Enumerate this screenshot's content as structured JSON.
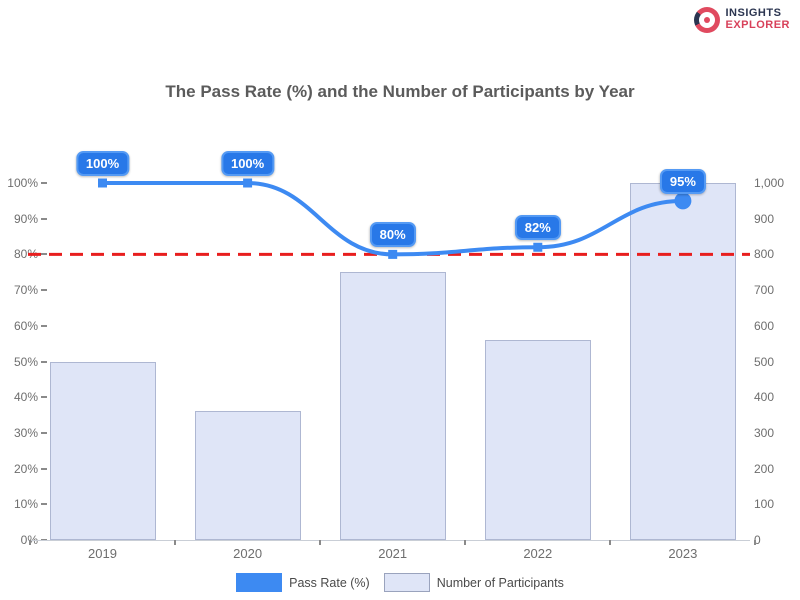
{
  "logo": {
    "line1": "INSIGHTS",
    "line2": "EXPLORER"
  },
  "title": "The Pass Rate (%) and the Number of Participants by Year",
  "chart_data": {
    "type": "bar",
    "subtype": "combo-bar-line-dual-axis",
    "categories": [
      "2019",
      "2020",
      "2021",
      "2022",
      "2023"
    ],
    "series": [
      {
        "name": "Pass Rate (%)",
        "type": "line",
        "axis": "left",
        "values": [
          100,
          100,
          80,
          82,
          95
        ],
        "point_labels": [
          "100%",
          "100%",
          "80%",
          "82%",
          "95%"
        ],
        "color": "#3d8af2"
      },
      {
        "name": "Number of Participants",
        "type": "bar",
        "axis": "right",
        "values": [
          500,
          360,
          750,
          560,
          1000
        ],
        "fill": "#dfe5f7",
        "border": "#aeb7d2"
      }
    ],
    "target_line": {
      "value": 80,
      "axis": "left",
      "color": "#e81e1e",
      "style": "dashed"
    },
    "left_axis": {
      "min": 0,
      "max": 100,
      "step": 10,
      "ticks": [
        "0%",
        "10%",
        "20%",
        "30%",
        "40%",
        "50%",
        "60%",
        "70%",
        "80%",
        "90%",
        "100%"
      ]
    },
    "right_axis": {
      "min": 0,
      "max": 1000,
      "step": 100,
      "ticks": [
        "0",
        "100",
        "200",
        "300",
        "400",
        "500",
        "600",
        "700",
        "800",
        "900",
        "1,000"
      ]
    },
    "grid": false,
    "legend_position": "bottom"
  },
  "colors": {
    "line": "#3d8af2",
    "point_label_bg": "#2878e8",
    "point_label_border": "#549af4",
    "bar_fill": "#dfe5f7",
    "bar_border": "#aeb7d2",
    "target": "#e81e1e",
    "axis_text": "#6e6e6e",
    "title_text": "#5b5b5b"
  }
}
